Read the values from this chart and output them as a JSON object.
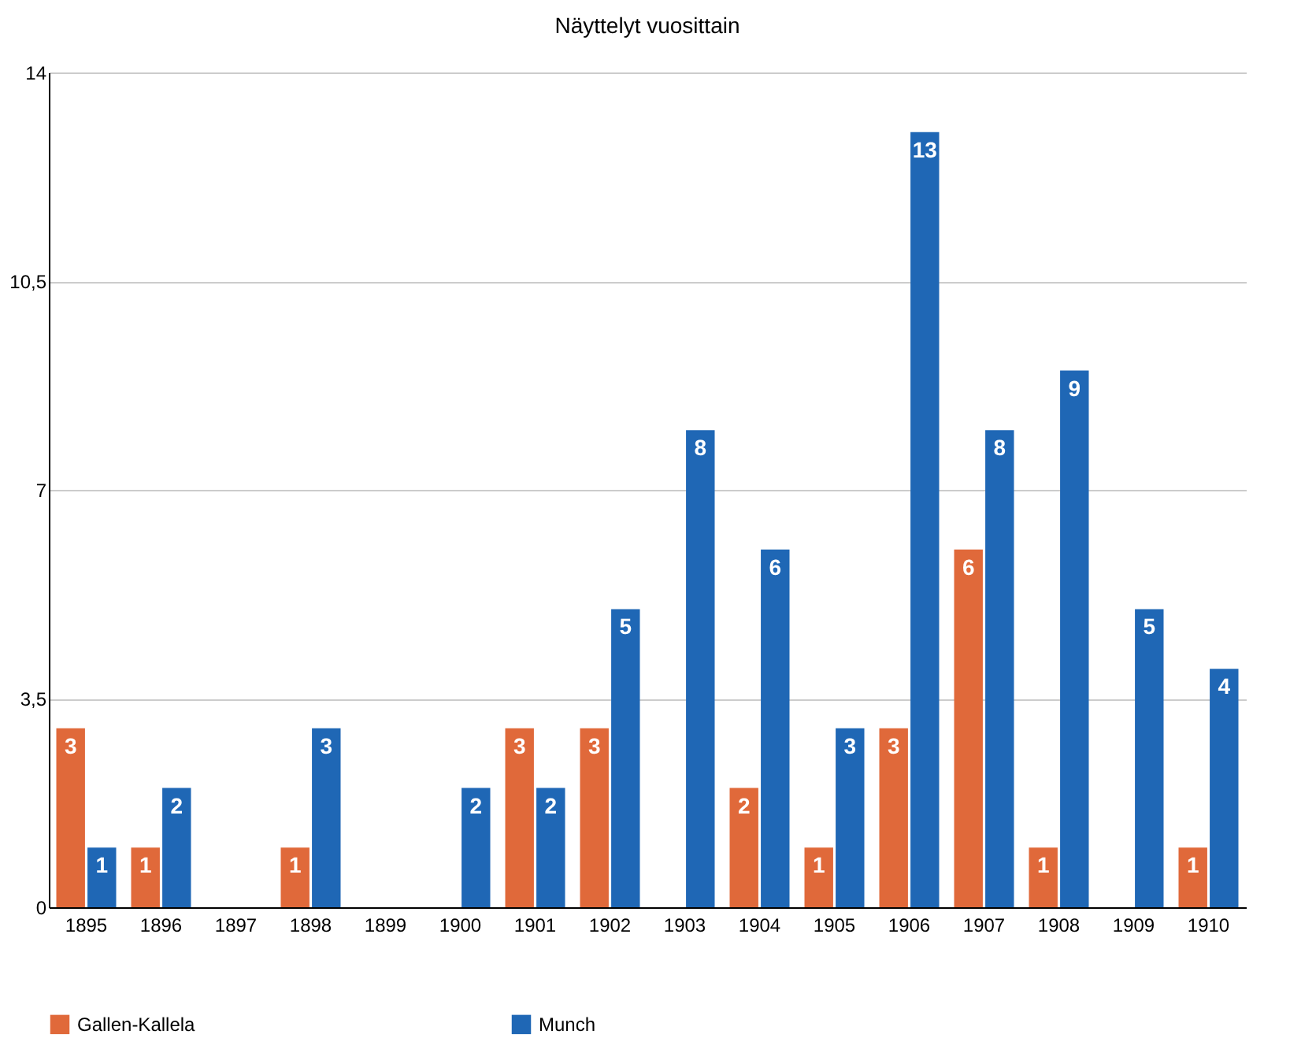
{
  "chart_data": {
    "type": "bar",
    "title": "Näyttelyt vuosittain",
    "categories": [
      "1895",
      "1896",
      "1897",
      "1898",
      "1899",
      "1900",
      "1901",
      "1902",
      "1903",
      "1904",
      "1905",
      "1906",
      "1907",
      "1908",
      "1909",
      "1910"
    ],
    "series": [
      {
        "name": "Gallen-Kallela",
        "color": "#e0693a",
        "values": [
          3,
          1,
          null,
          1,
          null,
          null,
          3,
          3,
          null,
          2,
          1,
          3,
          6,
          1,
          null,
          1
        ]
      },
      {
        "name": "Munch",
        "color": "#1f67b5",
        "values": [
          1,
          2,
          null,
          3,
          null,
          2,
          2,
          5,
          8,
          6,
          3,
          13,
          8,
          9,
          5,
          4
        ]
      }
    ],
    "ylim": [
      0,
      14
    ],
    "yticks": [
      0,
      {
        "value": 3.5,
        "label": "3,5"
      },
      7,
      {
        "value": 10.5,
        "label": "10,5"
      },
      14
    ],
    "grid": "y",
    "legend": "bottom",
    "data_labels": true
  }
}
